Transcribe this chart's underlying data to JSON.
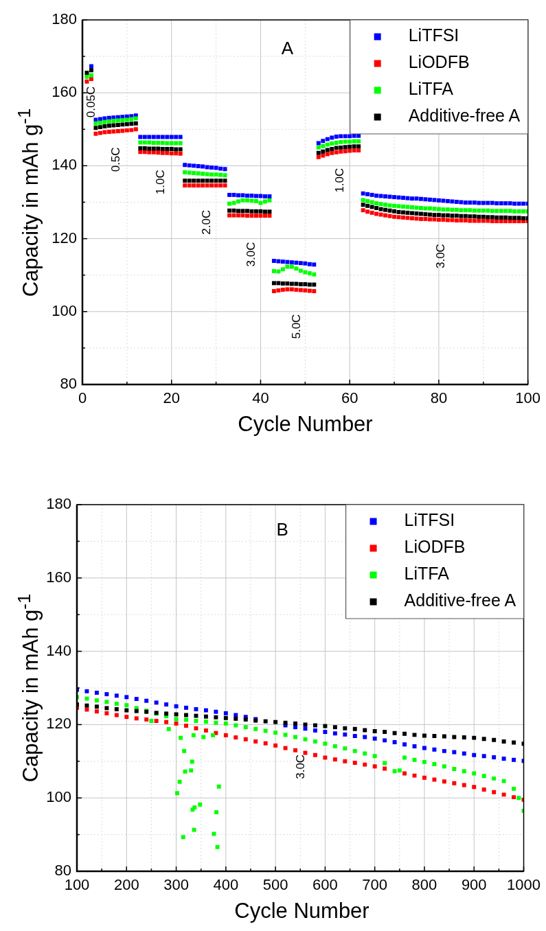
{
  "chart_data": [
    {
      "type": "scatter",
      "xlabel": "Cycle Number",
      "ylabel": "Capacity in mAh g$^{-1}$",
      "xlim": [
        0,
        100
      ],
      "xticks": [
        0,
        {
          "value": 10,
          "label": null
        },
        20,
        {
          "value": 30,
          "label": null
        },
        40,
        {
          "value": 50,
          "label": null
        },
        60,
        {
          "value": 70,
          "label": null
        },
        80,
        {
          "value": 90,
          "label": null
        },
        100
      ],
      "ylim": [
        80,
        180
      ],
      "yticks": [
        80,
        {
          "value": 90,
          "label": null
        },
        100,
        {
          "value": 110,
          "label": null
        },
        120,
        {
          "value": 130,
          "label": null
        },
        140,
        {
          "value": 150,
          "label": null
        },
        160,
        {
          "value": 170,
          "label": null
        },
        180
      ],
      "grid": true,
      "legend": "top right",
      "marker": "square",
      "annotations": [
        "A",
        "0.05C",
        "0.5C",
        "1.0C",
        "2.0C",
        "3.0C",
        "5.0C",
        "1.0C",
        "3.0C"
      ],
      "x": [
        1,
        2,
        3,
        4,
        5,
        6,
        7,
        8,
        9,
        10,
        11,
        12,
        13,
        14,
        15,
        16,
        17,
        18,
        19,
        20,
        21,
        22,
        23,
        24,
        25,
        26,
        27,
        28,
        29,
        30,
        31,
        32,
        33,
        34,
        35,
        36,
        37,
        38,
        39,
        40,
        41,
        42,
        43,
        44,
        45,
        46,
        47,
        48,
        49,
        50,
        51,
        52,
        53,
        54,
        55,
        56,
        57,
        58,
        59,
        60,
        61,
        62,
        63,
        64,
        65,
        66,
        67,
        68,
        69,
        70,
        71,
        72,
        73,
        74,
        75,
        76,
        77,
        78,
        79,
        80,
        81,
        82,
        83,
        84,
        85,
        86,
        87,
        88,
        89,
        90,
        91,
        92,
        93,
        94,
        95,
        96,
        97,
        98,
        99,
        100
      ],
      "series": [
        {
          "name": "LiTFSI",
          "color": "#0000ff",
          "values": [
            null,
            167.3,
            152.6,
            152.8,
            153.0,
            153.1,
            153.2,
            153.3,
            153.4,
            153.5,
            153.6,
            153.8,
            147.9,
            147.9,
            147.9,
            147.9,
            147.9,
            147.9,
            147.9,
            147.9,
            147.9,
            147.9,
            140.2,
            140.1,
            140.0,
            139.9,
            139.8,
            139.6,
            139.5,
            139.4,
            139.2,
            139.1,
            132.0,
            132.0,
            131.9,
            131.9,
            131.8,
            131.8,
            131.7,
            131.7,
            131.6,
            131.6,
            113.9,
            113.8,
            113.7,
            113.6,
            113.5,
            113.4,
            113.3,
            113.2,
            113.0,
            112.9,
            146.2,
            146.8,
            147.3,
            147.7,
            148.0,
            148.1,
            148.1,
            148.1,
            148.2,
            148.2,
            132.4,
            132.2,
            132.0,
            131.8,
            131.7,
            131.6,
            131.5,
            131.4,
            131.3,
            131.2,
            131.1,
            131.0,
            131.0,
            130.9,
            130.8,
            130.7,
            130.6,
            130.5,
            130.4,
            130.3,
            130.2,
            130.1,
            130.0,
            129.9,
            129.9,
            129.9,
            129.8,
            129.8,
            129.8,
            129.8,
            129.7,
            129.7,
            129.7,
            129.7,
            129.6,
            129.6,
            129.6,
            129.6
          ]
        },
        {
          "name": "LiODFB",
          "color": "#ff0000",
          "values": [
            163.1,
            163.8,
            148.8,
            149.0,
            149.2,
            149.3,
            149.4,
            149.5,
            149.6,
            149.7,
            149.8,
            150.0,
            143.8,
            143.8,
            143.7,
            143.7,
            143.6,
            143.5,
            143.5,
            143.4,
            143.4,
            143.3,
            134.6,
            134.6,
            134.6,
            134.6,
            134.6,
            134.6,
            134.6,
            134.6,
            134.6,
            134.6,
            126.4,
            126.4,
            126.4,
            126.4,
            126.3,
            126.3,
            126.3,
            126.3,
            126.3,
            126.3,
            105.6,
            105.8,
            106.0,
            106.1,
            106.1,
            106.0,
            105.9,
            105.8,
            105.7,
            105.6,
            142.4,
            142.8,
            143.2,
            143.5,
            143.7,
            143.9,
            144.0,
            144.1,
            144.2,
            144.2,
            127.8,
            127.4,
            127.1,
            126.8,
            126.6,
            126.4,
            126.2,
            126.0,
            125.9,
            125.8,
            125.7,
            125.6,
            125.5,
            125.4,
            125.4,
            125.3,
            125.3,
            125.2,
            125.2,
            125.1,
            125.1,
            125.0,
            125.0,
            125.0,
            124.9,
            124.9,
            124.9,
            124.9,
            124.9,
            124.8,
            124.8,
            124.8,
            124.8,
            124.8,
            124.8,
            124.8,
            124.8,
            124.8
          ]
        },
        {
          "name": "LiTFA",
          "color": "#00ff00",
          "values": [
            164.4,
            164.8,
            151.6,
            151.8,
            152.0,
            152.2,
            152.3,
            152.4,
            152.5,
            152.6,
            152.8,
            153.0,
            146.4,
            146.4,
            146.4,
            146.3,
            146.3,
            146.3,
            146.2,
            146.2,
            146.2,
            146.2,
            138.2,
            138.1,
            138.0,
            137.9,
            137.8,
            137.7,
            137.6,
            137.6,
            137.5,
            137.4,
            129.6,
            129.8,
            130.2,
            130.5,
            130.5,
            130.4,
            130.3,
            129.8,
            130.2,
            130.5,
            111.1,
            111.0,
            111.6,
            112.3,
            112.3,
            111.8,
            111.2,
            110.8,
            110.5,
            110.2,
            145.0,
            145.4,
            145.8,
            146.1,
            146.3,
            146.5,
            146.6,
            146.6,
            146.7,
            146.7,
            130.6,
            130.3,
            130.0,
            129.7,
            129.5,
            129.3,
            129.1,
            129.0,
            128.9,
            128.8,
            128.7,
            128.6,
            128.5,
            128.4,
            128.3,
            128.3,
            128.2,
            128.1,
            128.0,
            128.0,
            127.9,
            127.9,
            127.8,
            127.8,
            127.8,
            127.7,
            127.7,
            127.7,
            127.7,
            127.6,
            127.6,
            127.6,
            127.6,
            127.6,
            127.5,
            127.5,
            127.5,
            127.5
          ]
        },
        {
          "name": "Additive-free A",
          "color": "#000000",
          "values": [
            165.5,
            166.2,
            150.4,
            150.6,
            150.8,
            151.0,
            151.1,
            151.2,
            151.3,
            151.4,
            151.5,
            151.6,
            144.8,
            144.8,
            144.7,
            144.7,
            144.7,
            144.6,
            144.6,
            144.6,
            144.5,
            144.5,
            135.9,
            135.9,
            135.9,
            135.9,
            135.9,
            135.9,
            135.9,
            135.9,
            135.9,
            135.9,
            127.7,
            127.7,
            127.6,
            127.6,
            127.6,
            127.5,
            127.5,
            127.5,
            127.4,
            127.4,
            107.8,
            107.8,
            107.7,
            107.7,
            107.6,
            107.6,
            107.5,
            107.5,
            107.4,
            107.4,
            143.5,
            143.9,
            144.3,
            144.6,
            144.9,
            145.0,
            145.1,
            145.2,
            145.3,
            145.3,
            129.3,
            129.0,
            128.7,
            128.4,
            128.1,
            127.9,
            127.7,
            127.5,
            127.3,
            127.2,
            127.1,
            127.0,
            126.9,
            126.8,
            126.7,
            126.6,
            126.5,
            126.5,
            126.4,
            126.4,
            126.3,
            126.3,
            126.2,
            126.2,
            126.1,
            126.1,
            126.0,
            126.0,
            125.9,
            125.9,
            125.8,
            125.8,
            125.8,
            125.7,
            125.7,
            125.7,
            125.6,
            125.6
          ]
        }
      ]
    },
    {
      "type": "scatter",
      "xlabel": "Cycle Number",
      "ylabel": "Capacity in mAh g$^{-1}$",
      "xlim": [
        100,
        1000
      ],
      "xticks": [
        100,
        {
          "value": 150,
          "label": null
        },
        200,
        {
          "value": 250,
          "label": null
        },
        300,
        {
          "value": 350,
          "label": null
        },
        400,
        {
          "value": 450,
          "label": null
        },
        500,
        {
          "value": 550,
          "label": null
        },
        600,
        {
          "value": 650,
          "label": null
        },
        700,
        {
          "value": 750,
          "label": null
        },
        800,
        {
          "value": 850,
          "label": null
        },
        900,
        {
          "value": 950,
          "label": null
        },
        1000
      ],
      "ylim": [
        80,
        180
      ],
      "yticks": [
        80,
        {
          "value": 90,
          "label": null
        },
        100,
        {
          "value": 110,
          "label": null
        },
        120,
        {
          "value": 130,
          "label": null
        },
        140,
        {
          "value": 150,
          "label": null
        },
        160,
        {
          "value": 170,
          "label": null
        },
        180
      ],
      "grid": true,
      "legend": "top right",
      "marker": "square",
      "annotations": [
        "B",
        "3.0C"
      ],
      "x": [
        100,
        120,
        140,
        160,
        180,
        200,
        220,
        240,
        260,
        280,
        300,
        320,
        340,
        360,
        380,
        400,
        420,
        440,
        460,
        480,
        500,
        520,
        540,
        560,
        580,
        600,
        620,
        640,
        660,
        680,
        700,
        720,
        740,
        760,
        780,
        800,
        820,
        840,
        860,
        880,
        900,
        920,
        940,
        960,
        980,
        1000
      ],
      "series": [
        {
          "name": "LiTFSI",
          "color": "#0000ff",
          "values": [
            129.5,
            129.1,
            128.7,
            128.3,
            127.9,
            127.5,
            127.0,
            126.5,
            126.0,
            125.5,
            125.0,
            124.6,
            124.2,
            123.9,
            123.5,
            123.1,
            122.6,
            122.1,
            121.5,
            null,
            null,
            119.8,
            119.3,
            118.9,
            118.4,
            118.0,
            117.6,
            117.3,
            116.9,
            116.6,
            116.2,
            115.7,
            115.2,
            114.6,
            114.1,
            113.6,
            113.2,
            112.8,
            112.5,
            112.1,
            111.7,
            111.4,
            111.1,
            110.7,
            110.4,
            110.1
          ]
        },
        {
          "name": "LiODFB",
          "color": "#ff0000",
          "values": [
            124.6,
            124.1,
            123.6,
            123.1,
            122.6,
            122.1,
            121.7,
            121.4,
            121.0,
            120.7,
            120.3,
            119.7,
            119.0,
            118.4,
            117.7,
            117.1,
            116.5,
            116.0,
            115.4,
            114.9,
            114.3,
            113.6,
            113.0,
            112.3,
            111.7,
            111.0,
            110.5,
            110.0,
            109.6,
            109.1,
            108.6,
            108.0,
            null,
            106.7,
            106.1,
            105.5,
            105.0,
            104.5,
            104.0,
            103.5,
            103.0,
            102.3,
            101.6,
            100.9,
            100.2,
            99.5
          ]
        },
        {
          "name": "LiTFA",
          "color": "#00ff00",
          "x": [
            100,
            120,
            140,
            160,
            180,
            200,
            220,
            240,
            250,
            260,
            280,
            285,
            300,
            302,
            307,
            309,
            314,
            316,
            318,
            320,
            330,
            332,
            333,
            335,
            336,
            337,
            340,
            348,
            355,
            360,
            374,
            376,
            380,
            381,
            383,
            386,
            400,
            420,
            440,
            460,
            480,
            500,
            520,
            540,
            560,
            580,
            600,
            620,
            640,
            660,
            680,
            700,
            720,
            740,
            750,
            760,
            780,
            800,
            820,
            840,
            860,
            880,
            900,
            920,
            940,
            960,
            980,
            990,
            1000
          ],
          "values": [
            127.5,
            127.1,
            126.6,
            126.2,
            125.7,
            125.3,
            124.5,
            123.8,
            121.0,
            123.0,
            122.3,
            118.8,
            121.5,
            101.3,
            104.4,
            116.4,
            89.3,
            112.8,
            107.2,
            121.3,
            107.5,
            109.9,
            96.8,
            117.1,
            91.3,
            97.4,
            121.0,
            98.2,
            116.6,
            120.8,
            117.1,
            90.2,
            120.5,
            96.1,
            86.6,
            103.1,
            120.3,
            119.8,
            119.3,
            118.8,
            118.3,
            117.8,
            117.2,
            116.6,
            116.0,
            115.4,
            114.8,
            114.1,
            113.5,
            112.8,
            112.1,
            111.4,
            109.5,
            107.3,
            107.5,
            111.0,
            110.4,
            109.8,
            109.2,
            108.6,
            107.9,
            107.3,
            106.7,
            106.0,
            105.3,
            104.6,
            102.5,
            100.0,
            96.5
          ]
        },
        {
          "name": "Additive-free A",
          "color": "#000000",
          "values": [
            125.5,
            125.2,
            124.9,
            124.5,
            124.2,
            123.9,
            123.7,
            123.5,
            123.2,
            123.0,
            122.8,
            122.6,
            122.4,
            122.2,
            122.0,
            121.8,
            121.6,
            121.4,
            121.1,
            120.9,
            120.7,
            120.5,
            120.3,
            120.0,
            119.8,
            119.6,
            119.3,
            119.0,
            118.8,
            118.5,
            118.2,
            118.0,
            117.7,
            117.5,
            117.2,
            117.0,
            116.9,
            116.8,
            116.6,
            116.5,
            116.4,
            116.1,
            115.8,
            115.4,
            115.1,
            114.8
          ]
        }
      ]
    }
  ]
}
